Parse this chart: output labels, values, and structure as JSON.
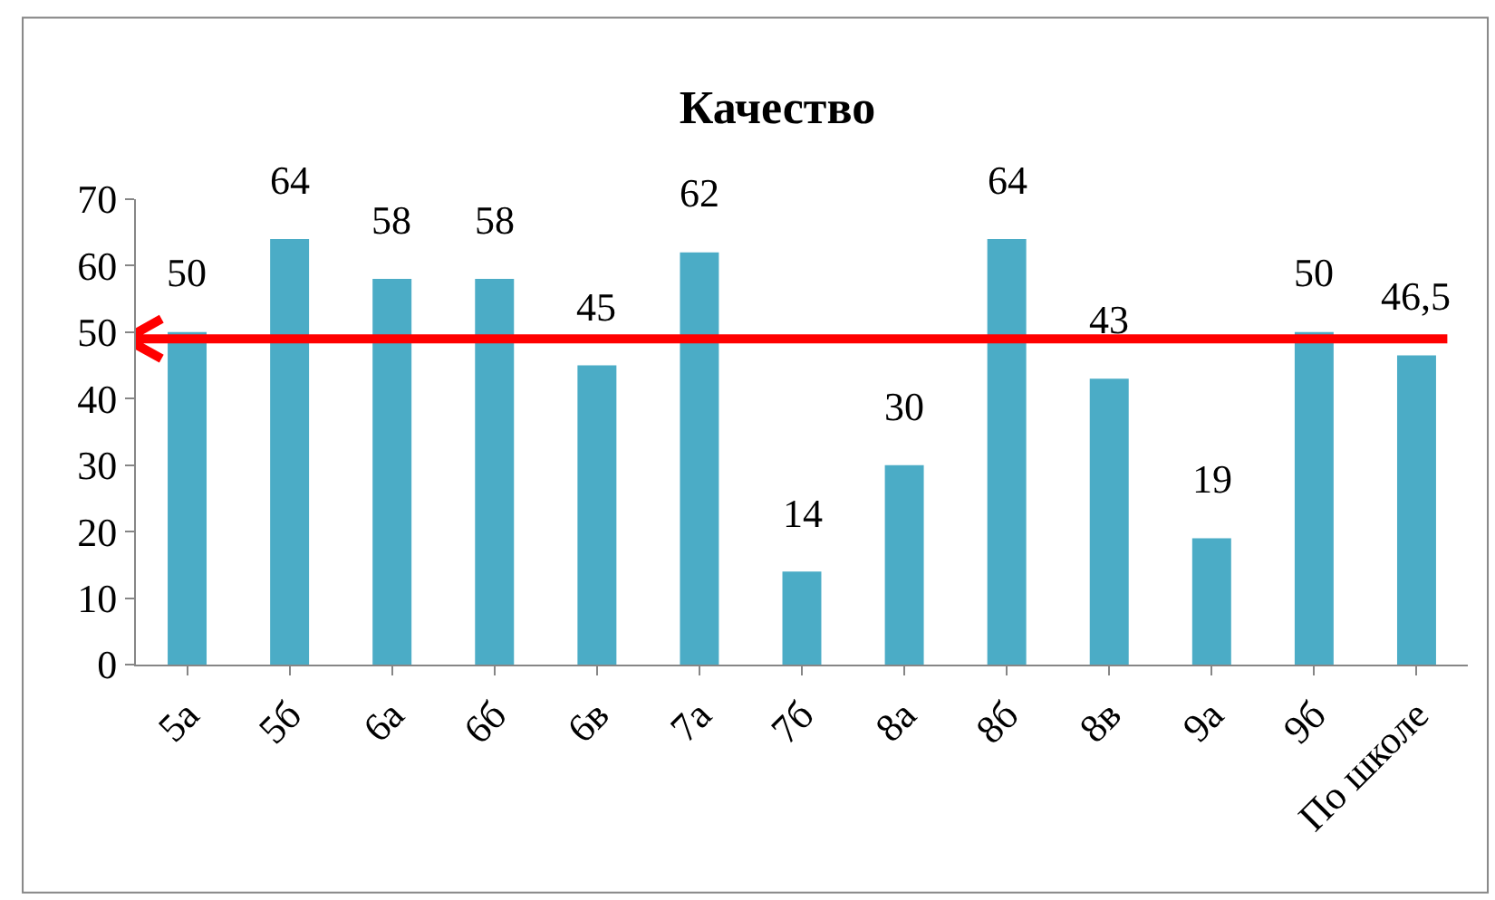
{
  "chart_data": {
    "type": "bar",
    "title": "Качество",
    "categories": [
      "5а",
      "5б",
      "6а",
      "6б",
      "6в",
      "7а",
      "7б",
      "8а",
      "8б",
      "8в",
      "9а",
      "9б",
      "По школе"
    ],
    "values": [
      50,
      64,
      58,
      58,
      45,
      62,
      14,
      30,
      64,
      43,
      19,
      50,
      46.5
    ],
    "value_labels": [
      "50",
      "64",
      "58",
      "58",
      "45",
      "62",
      "14",
      "30",
      "64",
      "43",
      "19",
      "50",
      "46,5"
    ],
    "color": "#4bacc6",
    "ylim": [
      0,
      70
    ],
    "yticks": [
      0,
      10,
      20,
      30,
      40,
      50,
      60,
      70
    ],
    "grid": false,
    "legend": false,
    "ref_lines": [
      {
        "axis": "y",
        "value": 49,
        "label": null,
        "color": "#ff0000"
      }
    ]
  }
}
